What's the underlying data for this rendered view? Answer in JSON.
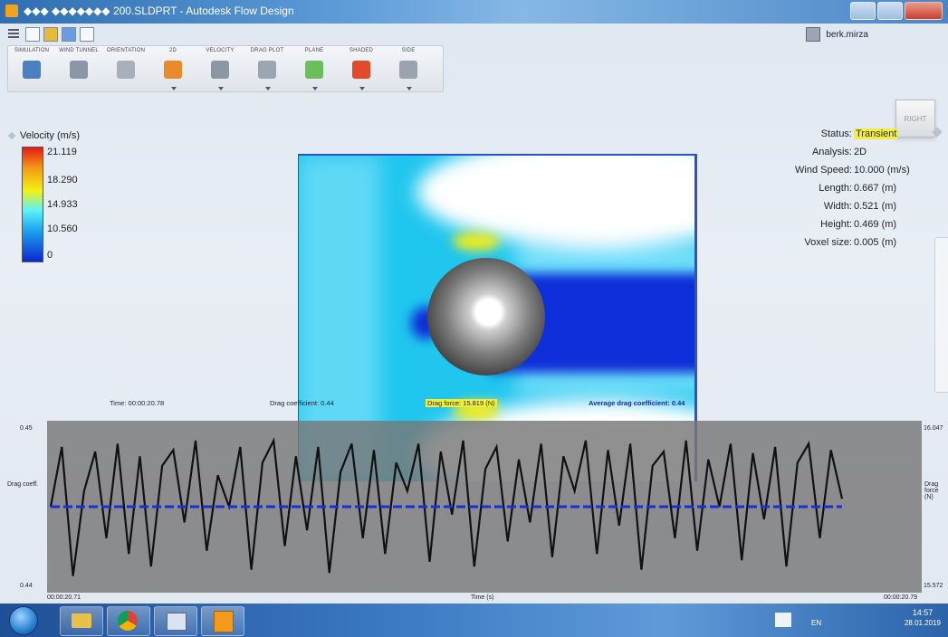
{
  "window": {
    "title": "◆◆◆ ◆◆◆◆◆◆◆ 200.SLDPRT - Autodesk Flow Design"
  },
  "user": {
    "name": "berk.mirza"
  },
  "toolbar": {
    "items": [
      {
        "label": "SIMULATION",
        "icon": "simulation-icon",
        "color": "#4a7fc0"
      },
      {
        "label": "WIND TUNNEL",
        "icon": "wind-tunnel-icon",
        "color": "#8a97a8"
      },
      {
        "label": "ORIENTATION",
        "icon": "orientation-icon",
        "color": "#a7b0bb"
      },
      {
        "label": "2D",
        "icon": "2d-icon",
        "color": "#e98b2a"
      },
      {
        "label": "VELOCITY",
        "icon": "velocity-icon",
        "color": "#8b97a5"
      },
      {
        "label": "DRAG PLOT",
        "icon": "drag-plot-icon",
        "color": "#9aa6b2"
      },
      {
        "label": "PLANE",
        "icon": "plane-icon",
        "color": "#6bbf59"
      },
      {
        "label": "SHADED",
        "icon": "shaded-icon",
        "color": "#e24a2b"
      },
      {
        "label": "SIDE",
        "icon": "side-icon",
        "color": "#9ba3ad"
      }
    ]
  },
  "viewcube": {
    "label": "RIGHT"
  },
  "legend": {
    "title": "Velocity (m/s)",
    "values": [
      "21.119",
      "18.290",
      "14.933",
      "10.560",
      "0"
    ]
  },
  "status": {
    "rows": [
      {
        "key": "Status:",
        "value": "Transient",
        "highlight": true
      },
      {
        "key": "Analysis:",
        "value": "2D"
      },
      {
        "key": "Wind Speed:",
        "value": "10.000 (m/s)"
      },
      {
        "key": "Length:",
        "value": "0.667 (m)"
      },
      {
        "key": "Width:",
        "value": "0.521 (m)"
      },
      {
        "key": "Height:",
        "value": "0.469 (m)"
      },
      {
        "key": "Voxel size:",
        "value": "0.005 (m)"
      }
    ]
  },
  "plot_info": {
    "time": "Time: 00:00:20.78",
    "drag_coefficient": "Drag coefficient: 0.44",
    "drag_force": "Drag force: 15.819 (N)",
    "average_drag": "Average drag coefficient: 0.44"
  },
  "chart_data": {
    "type": "line",
    "xlabel": "Time (s)",
    "x_start_label": "00:00:20.71",
    "x_end_label": "00:00:20.79",
    "left_axis": {
      "label": "Drag coeff.",
      "top": "0.45",
      "bottom": "0.44"
    },
    "right_axis": {
      "label": "Drag force (N)",
      "top": "16.047",
      "bottom": "15.572"
    },
    "series": [
      {
        "values": [
          0.5,
          0.88,
          0.06,
          0.6,
          0.85,
          0.3,
          0.9,
          0.2,
          0.82,
          0.12,
          0.76,
          0.86,
          0.4,
          0.92,
          0.22,
          0.7,
          0.5,
          0.88,
          0.1,
          0.78,
          0.92,
          0.25,
          0.82,
          0.35,
          0.88,
          0.08,
          0.72,
          0.9,
          0.3,
          0.86,
          0.2,
          0.78,
          0.6,
          0.9,
          0.15,
          0.85,
          0.45,
          0.92,
          0.12,
          0.74,
          0.88,
          0.28,
          0.8,
          0.4,
          0.9,
          0.18,
          0.82,
          0.6,
          0.92,
          0.2,
          0.86,
          0.38,
          0.9,
          0.1,
          0.76,
          0.85,
          0.3,
          0.92,
          0.22,
          0.8,
          0.5,
          0.9,
          0.16,
          0.84,
          0.42,
          0.88,
          0.12,
          0.78,
          0.9,
          0.3,
          0.86,
          0.55
        ]
      },
      {
        "name": "Average drag coefficient",
        "values": [
          0.5,
          0.5
        ]
      }
    ],
    "grid": false
  },
  "taskbar": {
    "language": "EN",
    "time": "14:57",
    "date": "28.01.2019"
  }
}
